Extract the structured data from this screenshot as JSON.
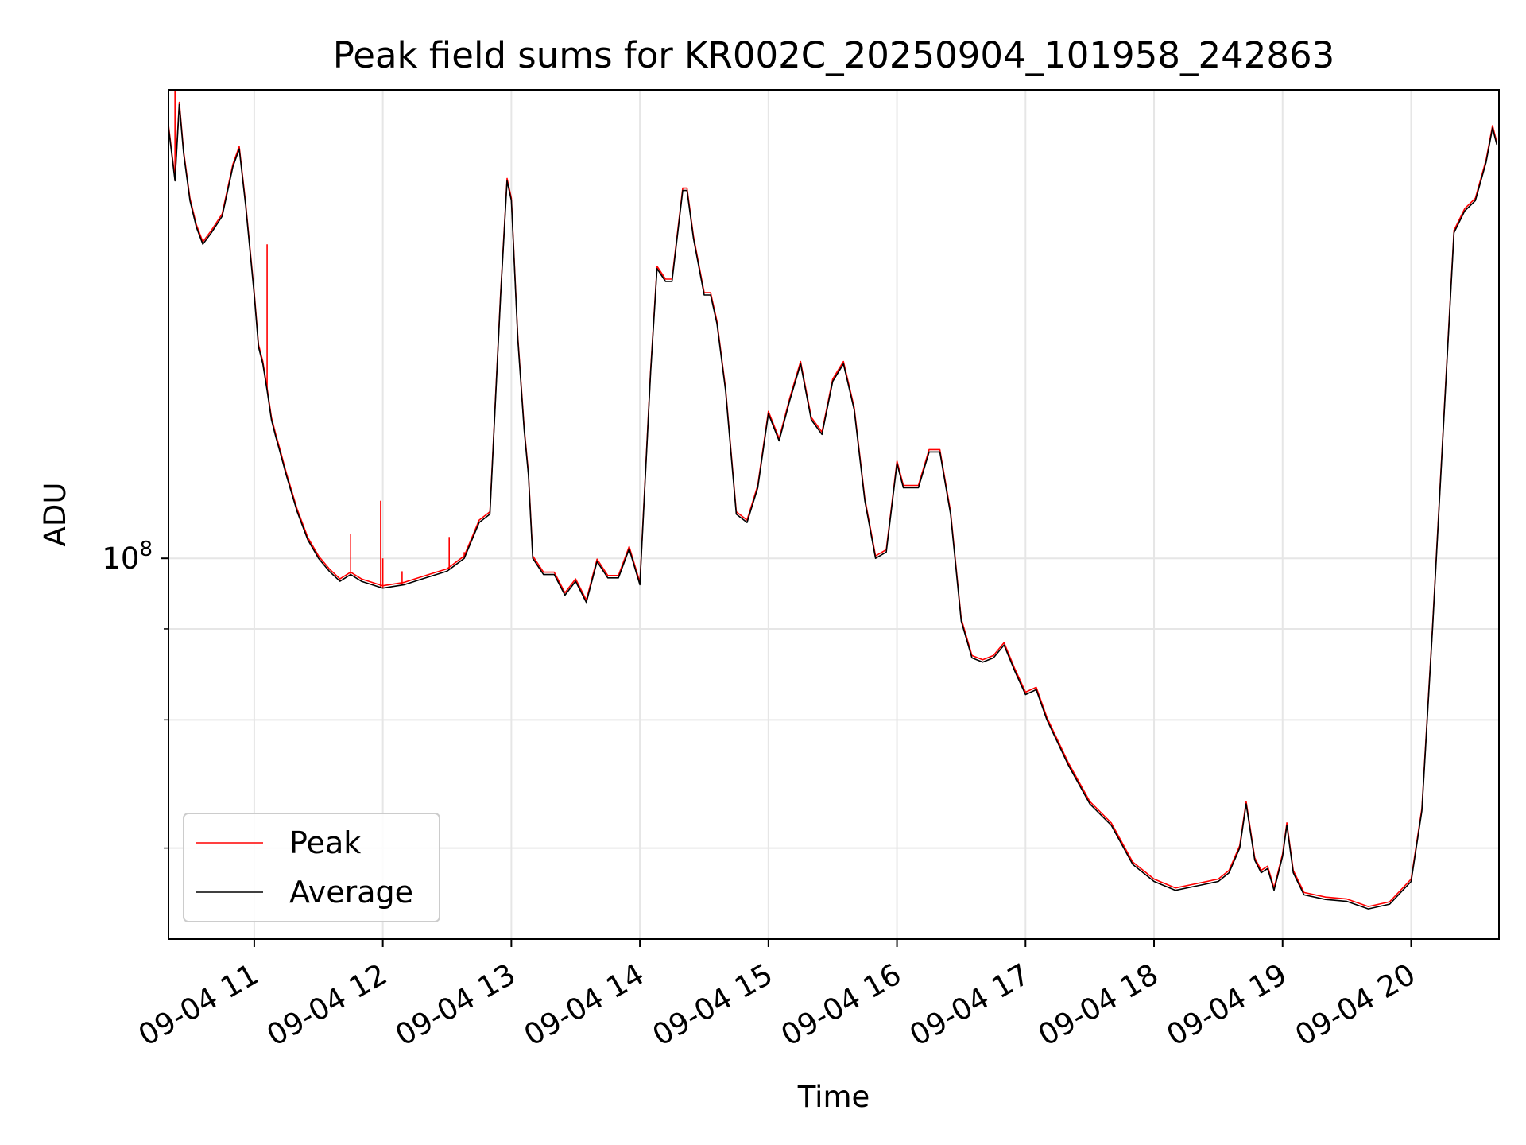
{
  "chart_data": {
    "type": "line",
    "title": "Peak field sums for KR002C_20250904_101958_242863",
    "xlabel": "Time",
    "ylabel": "ADU",
    "yscale": "log",
    "xlim": [
      "2025-09-04 10:19:58",
      "2025-09-04 20:41:00"
    ],
    "ylim": [
      30000000,
      440000000
    ],
    "x_ticks": [
      "09-04 11",
      "09-04 12",
      "09-04 13",
      "09-04 14",
      "09-04 15",
      "09-04 16",
      "09-04 17",
      "09-04 18",
      "09-04 19",
      "09-04 20"
    ],
    "y_tick_labels": [
      {
        "value": 100000000,
        "label": "10^8"
      }
    ],
    "y_minor_gridlines": [
      40000000,
      60000000,
      80000000
    ],
    "grid": true,
    "legend": {
      "position": "lower-left",
      "entries": [
        "Peak",
        "Average"
      ]
    },
    "colors": {
      "Peak": "#ff0000",
      "Average": "#000000",
      "grid": "#e6e6e6"
    },
    "series": [
      {
        "name": "Average",
        "x": [
          "2025-09-04 10:20",
          "2025-09-04 10:23",
          "2025-09-04 10:25",
          "2025-09-04 10:27",
          "2025-09-04 10:30",
          "2025-09-04 10:33",
          "2025-09-04 10:36",
          "2025-09-04 10:40",
          "2025-09-04 10:45",
          "2025-09-04 10:50",
          "2025-09-04 10:53",
          "2025-09-04 10:56",
          "2025-09-04 11:00",
          "2025-09-04 11:02",
          "2025-09-04 11:04",
          "2025-09-04 11:06",
          "2025-09-04 11:08",
          "2025-09-04 11:10",
          "2025-09-04 11:12",
          "2025-09-04 11:15",
          "2025-09-04 11:20",
          "2025-09-04 11:25",
          "2025-09-04 11:30",
          "2025-09-04 11:35",
          "2025-09-04 11:40",
          "2025-09-04 11:45",
          "2025-09-04 11:50",
          "2025-09-04 12:00",
          "2025-09-04 12:10",
          "2025-09-04 12:20",
          "2025-09-04 12:30",
          "2025-09-04 12:38",
          "2025-09-04 12:45",
          "2025-09-04 12:50",
          "2025-09-04 12:55",
          "2025-09-04 12:58",
          "2025-09-04 13:00",
          "2025-09-04 13:03",
          "2025-09-04 13:06",
          "2025-09-04 13:08",
          "2025-09-04 13:10",
          "2025-09-04 13:15",
          "2025-09-04 13:20",
          "2025-09-04 13:25",
          "2025-09-04 13:30",
          "2025-09-04 13:35",
          "2025-09-04 13:40",
          "2025-09-04 13:45",
          "2025-09-04 13:50",
          "2025-09-04 13:55",
          "2025-09-04 14:00",
          "2025-09-04 14:05",
          "2025-09-04 14:08",
          "2025-09-04 14:12",
          "2025-09-04 14:15",
          "2025-09-04 14:20",
          "2025-09-04 14:22",
          "2025-09-04 14:25",
          "2025-09-04 14:30",
          "2025-09-04 14:33",
          "2025-09-04 14:36",
          "2025-09-04 14:40",
          "2025-09-04 14:45",
          "2025-09-04 14:50",
          "2025-09-04 14:55",
          "2025-09-04 15:00",
          "2025-09-04 15:05",
          "2025-09-04 15:10",
          "2025-09-04 15:15",
          "2025-09-04 15:20",
          "2025-09-04 15:25",
          "2025-09-04 15:30",
          "2025-09-04 15:35",
          "2025-09-04 15:40",
          "2025-09-04 15:45",
          "2025-09-04 15:50",
          "2025-09-04 15:55",
          "2025-09-04 16:00",
          "2025-09-04 16:03",
          "2025-09-04 16:10",
          "2025-09-04 16:15",
          "2025-09-04 16:20",
          "2025-09-04 16:25",
          "2025-09-04 16:30",
          "2025-09-04 16:35",
          "2025-09-04 16:40",
          "2025-09-04 16:45",
          "2025-09-04 16:50",
          "2025-09-04 16:55",
          "2025-09-04 17:00",
          "2025-09-04 17:05",
          "2025-09-04 17:10",
          "2025-09-04 17:20",
          "2025-09-04 17:30",
          "2025-09-04 17:40",
          "2025-09-04 17:50",
          "2025-09-04 18:00",
          "2025-09-04 18:10",
          "2025-09-04 18:20",
          "2025-09-04 18:30",
          "2025-09-04 18:35",
          "2025-09-04 18:40",
          "2025-09-04 18:43",
          "2025-09-04 18:47",
          "2025-09-04 18:50",
          "2025-09-04 18:53",
          "2025-09-04 18:56",
          "2025-09-04 19:00",
          "2025-09-04 19:02",
          "2025-09-04 19:05",
          "2025-09-04 19:10",
          "2025-09-04 19:20",
          "2025-09-04 19:30",
          "2025-09-04 19:40",
          "2025-09-04 19:50",
          "2025-09-04 20:00",
          "2025-09-04 20:05",
          "2025-09-04 20:10",
          "2025-09-04 20:15",
          "2025-09-04 20:20",
          "2025-09-04 20:25",
          "2025-09-04 20:30",
          "2025-09-04 20:35",
          "2025-09-04 20:38",
          "2025-09-04 20:40"
        ],
        "y": [
          390000000,
          330000000,
          420000000,
          360000000,
          310000000,
          285000000,
          270000000,
          280000000,
          295000000,
          345000000,
          365000000,
          305000000,
          230000000,
          195000000,
          185000000,
          170000000,
          155000000,
          147000000,
          140000000,
          130000000,
          116000000,
          106000000,
          100000000,
          96000000,
          93000000,
          95000000,
          93000000,
          91000000,
          92000000,
          94000000,
          96000000,
          100000000,
          112000000,
          115000000,
          230000000,
          330000000,
          310000000,
          200000000,
          150000000,
          130000000,
          100000000,
          95000000,
          95000000,
          89000000,
          93000000,
          87000000,
          99000000,
          94000000,
          94000000,
          103000000,
          92000000,
          180000000,
          250000000,
          240000000,
          240000000,
          320000000,
          320000000,
          275000000,
          230000000,
          230000000,
          210000000,
          170000000,
          115000000,
          112000000,
          125000000,
          158000000,
          145000000,
          165000000,
          185000000,
          155000000,
          148000000,
          175000000,
          185000000,
          160000000,
          120000000,
          100000000,
          102000000,
          135000000,
          125000000,
          125000000,
          140000000,
          140000000,
          115000000,
          82000000,
          73000000,
          72000000,
          73000000,
          76000000,
          70000000,
          65000000,
          66000000,
          60000000,
          52000000,
          46000000,
          43000000,
          38000000,
          36000000,
          35000000,
          35500000,
          36000000,
          37000000,
          40000000,
          46000000,
          38500000,
          37000000,
          37500000,
          35000000,
          39000000,
          43000000,
          37000000,
          34500000,
          34000000,
          33800000,
          33000000,
          33500000,
          36000000,
          45000000,
          80000000,
          150000000,
          280000000,
          300000000,
          310000000,
          350000000,
          390000000,
          370000000
        ]
      },
      {
        "name": "Peak",
        "x": [
          "2025-09-04 10:23",
          "2025-09-04 11:06",
          "2025-09-04 11:45",
          "2025-09-04 11:59",
          "2025-09-04 12:00",
          "2025-09-04 12:09",
          "2025-09-04 12:31",
          "2025-09-04 12:38"
        ],
        "y": [
          440000000,
          270000000,
          108000000,
          120000000,
          100000000,
          96000000,
          107000000,
          102000000
        ]
      }
    ]
  }
}
